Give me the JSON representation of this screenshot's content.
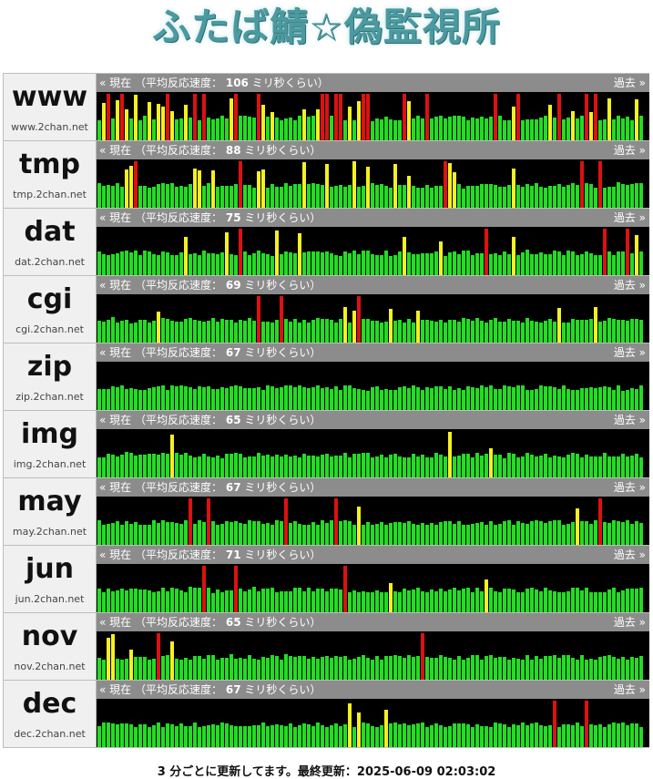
{
  "title": "ふたば鯖☆偽監視所",
  "labels": {
    "current_prefix": "«",
    "current": "現在",
    "speed_open": "（平均反応速度：",
    "speed_unit": "ミリ秒くらい）",
    "past": "過去",
    "past_suffix": "»"
  },
  "colors": {
    "green": "#22dd22",
    "yellow": "#f5f020",
    "red": "#dd1111",
    "panel_bg": "#000000",
    "header_bg": "#8c8c8c"
  },
  "servers": [
    {
      "name": "www",
      "host": "www.2chan.net",
      "avg_ms": 106
    },
    {
      "name": "tmp",
      "host": "tmp.2chan.net",
      "avg_ms": 88
    },
    {
      "name": "dat",
      "host": "dat.2chan.net",
      "avg_ms": 75
    },
    {
      "name": "cgi",
      "host": "cgi.2chan.net",
      "avg_ms": 69
    },
    {
      "name": "zip",
      "host": "zip.2chan.net",
      "avg_ms": 67
    },
    {
      "name": "img",
      "host": "img.2chan.net",
      "avg_ms": 65
    },
    {
      "name": "may",
      "host": "may.2chan.net",
      "avg_ms": 67
    },
    {
      "name": "jun",
      "host": "jun.2chan.net",
      "avg_ms": 71
    },
    {
      "name": "nov",
      "host": "nov.2chan.net",
      "avg_ms": 65
    },
    {
      "name": "dec",
      "host": "dec.2chan.net",
      "avg_ms": 67
    }
  ],
  "footer": {
    "text": "3 分ごとに更新してます。最終更新：2025-06-09 02:03:02"
  }
}
